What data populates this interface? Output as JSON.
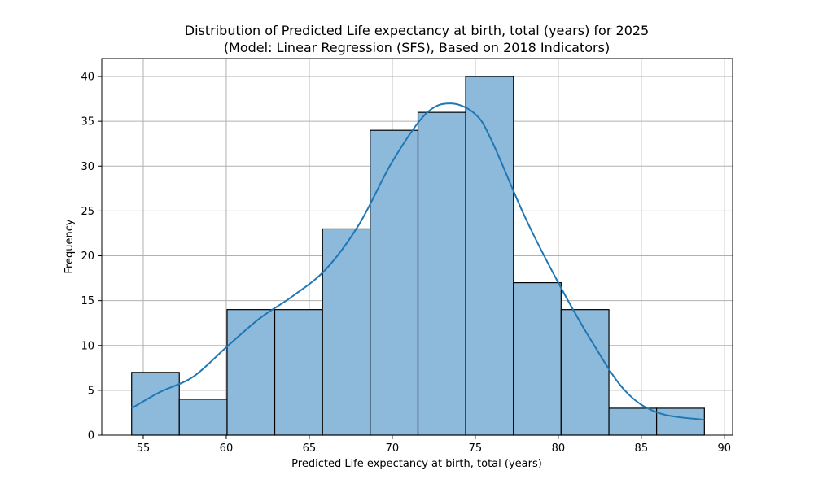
{
  "chart_data": {
    "type": "bar",
    "subtype": "histogram",
    "title_line1": "Distribution of Predicted Life expectancy at birth, total (years) for 2025",
    "title_line2": "(Model: Linear Regression (SFS), Based on 2018 Indicators)",
    "xlabel": "Predicted Life expectancy at birth, total (years)",
    "ylabel": "Frequency",
    "xlim": [
      52.5,
      90.5
    ],
    "ylim": [
      0,
      42
    ],
    "x_ticks": [
      55,
      60,
      65,
      70,
      75,
      80,
      85,
      90
    ],
    "y_ticks": [
      0,
      5,
      10,
      15,
      20,
      25,
      30,
      35,
      40
    ],
    "grid": true,
    "bin_edges": [
      54.3,
      57.17,
      60.05,
      62.92,
      65.8,
      68.67,
      71.55,
      74.42,
      77.3,
      80.17,
      83.05,
      85.92,
      88.8
    ],
    "counts": [
      7,
      4,
      14,
      14,
      23,
      34,
      36,
      40,
      17,
      14,
      3,
      3
    ],
    "kde": {
      "x": [
        54.3,
        56,
        58,
        60,
        62,
        64,
        66,
        68,
        70,
        72,
        73.5,
        75,
        76,
        78,
        80,
        82,
        84,
        86,
        88.8
      ],
      "y": [
        3.0,
        4.8,
        6.5,
        9.8,
        13.0,
        15.5,
        18.5,
        23.5,
        30.5,
        35.8,
        37.0,
        35.8,
        32.8,
        24.3,
        17.0,
        10.5,
        5.0,
        2.5,
        1.7
      ]
    },
    "colors": {
      "bar_fill": "#8db9da",
      "bar_edge": "#000000",
      "kde_line": "#1f77b4",
      "grid": "#b0b0b0"
    }
  }
}
